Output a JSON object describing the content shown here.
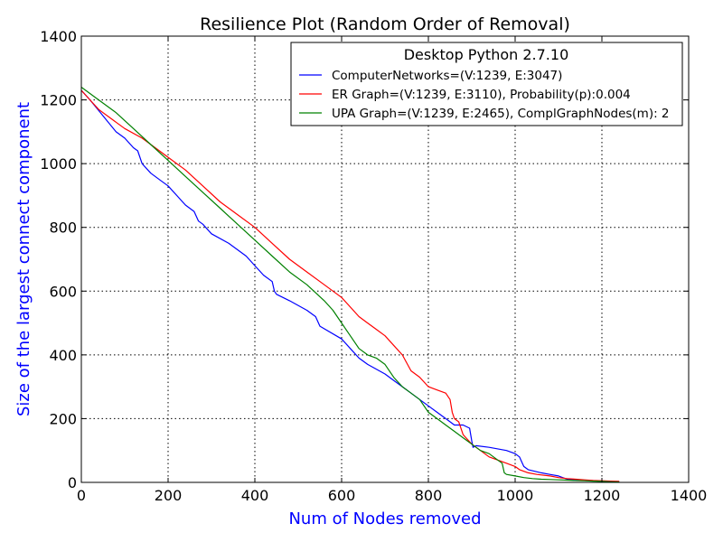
{
  "chart_data": {
    "type": "line",
    "title": "Resilience Plot (Random Order of Removal)",
    "xlabel": "Num of Nodes removed",
    "ylabel": "Size of the largest connect component",
    "xlim": [
      0,
      1400
    ],
    "ylim": [
      0,
      1400
    ],
    "xticks": [
      0,
      200,
      400,
      600,
      800,
      1000,
      1200,
      1400
    ],
    "yticks": [
      0,
      200,
      400,
      600,
      800,
      1000,
      1200,
      1400
    ],
    "grid": true,
    "legend": {
      "title": "Desktop Python 2.7.10",
      "placement": "top-right"
    },
    "colors": {
      "label": "#0000ff"
    },
    "series": [
      {
        "name": "ComputerNetworks=(V:1239, E:3047)",
        "color": "#0000ff",
        "x": [
          0,
          20,
          50,
          80,
          100,
          120,
          130,
          140,
          160,
          180,
          200,
          220,
          240,
          260,
          270,
          280,
          300,
          340,
          380,
          400,
          420,
          440,
          445,
          450,
          480,
          520,
          540,
          550,
          600,
          620,
          640,
          660,
          700,
          720,
          740,
          760,
          780,
          800,
          820,
          840,
          860,
          880,
          895,
          900,
          903,
          910,
          940,
          980,
          1000,
          1010,
          1020,
          1030,
          1060,
          1080,
          1100,
          1120,
          1140,
          1160,
          1180,
          1200,
          1220,
          1240
        ],
        "y": [
          1230,
          1200,
          1150,
          1100,
          1080,
          1050,
          1040,
          1000,
          970,
          950,
          930,
          900,
          870,
          850,
          820,
          810,
          780,
          750,
          710,
          680,
          650,
          630,
          600,
          590,
          570,
          540,
          520,
          490,
          450,
          420,
          390,
          370,
          340,
          320,
          300,
          280,
          260,
          240,
          220,
          200,
          180,
          180,
          170,
          130,
          110,
          115,
          110,
          100,
          90,
          80,
          50,
          40,
          30,
          25,
          20,
          10,
          8,
          6,
          5,
          3,
          2,
          1
        ]
      },
      {
        "name": "ER Graph=(V:1239, E:3110), Probability(p):0.004",
        "color": "#ff0000",
        "x": [
          0,
          20,
          40,
          80,
          100,
          140,
          180,
          200,
          240,
          280,
          320,
          360,
          400,
          440,
          480,
          520,
          560,
          600,
          620,
          640,
          660,
          680,
          700,
          720,
          740,
          760,
          780,
          800,
          820,
          840,
          850,
          855,
          860,
          870,
          880,
          900,
          920,
          940,
          960,
          980,
          1000,
          1010,
          1030,
          1050,
          1080,
          1100,
          1120,
          1140,
          1160,
          1180,
          1200,
          1220,
          1240
        ],
        "y": [
          1230,
          1200,
          1170,
          1130,
          1110,
          1080,
          1040,
          1020,
          980,
          930,
          880,
          840,
          800,
          750,
          700,
          660,
          620,
          580,
          550,
          520,
          500,
          480,
          460,
          430,
          400,
          350,
          330,
          300,
          290,
          280,
          260,
          220,
          200,
          190,
          150,
          120,
          100,
          80,
          70,
          60,
          50,
          40,
          30,
          25,
          20,
          15,
          12,
          10,
          8,
          6,
          5,
          4,
          3
        ]
      },
      {
        "name": "UPA Graph=(V:1239, E:2465), ComplGraphNodes(m): 2",
        "color": "#008000",
        "x": [
          0,
          40,
          80,
          120,
          160,
          200,
          240,
          280,
          320,
          360,
          400,
          440,
          480,
          520,
          560,
          580,
          600,
          620,
          640,
          660,
          680,
          700,
          720,
          740,
          760,
          780,
          800,
          820,
          840,
          860,
          880,
          900,
          920,
          940,
          960,
          970,
          975,
          980,
          1000,
          1020,
          1040,
          1060,
          1080,
          1100,
          1120,
          1140,
          1160,
          1180,
          1200,
          1220,
          1240
        ],
        "y": [
          1240,
          1200,
          1160,
          1110,
          1060,
          1010,
          960,
          910,
          860,
          810,
          760,
          710,
          660,
          620,
          570,
          540,
          500,
          460,
          420,
          400,
          390,
          370,
          330,
          300,
          280,
          260,
          220,
          200,
          180,
          160,
          140,
          120,
          100,
          90,
          70,
          60,
          30,
          25,
          20,
          15,
          12,
          10,
          9,
          8,
          7,
          6,
          5,
          4,
          3,
          2,
          1
        ]
      }
    ]
  }
}
